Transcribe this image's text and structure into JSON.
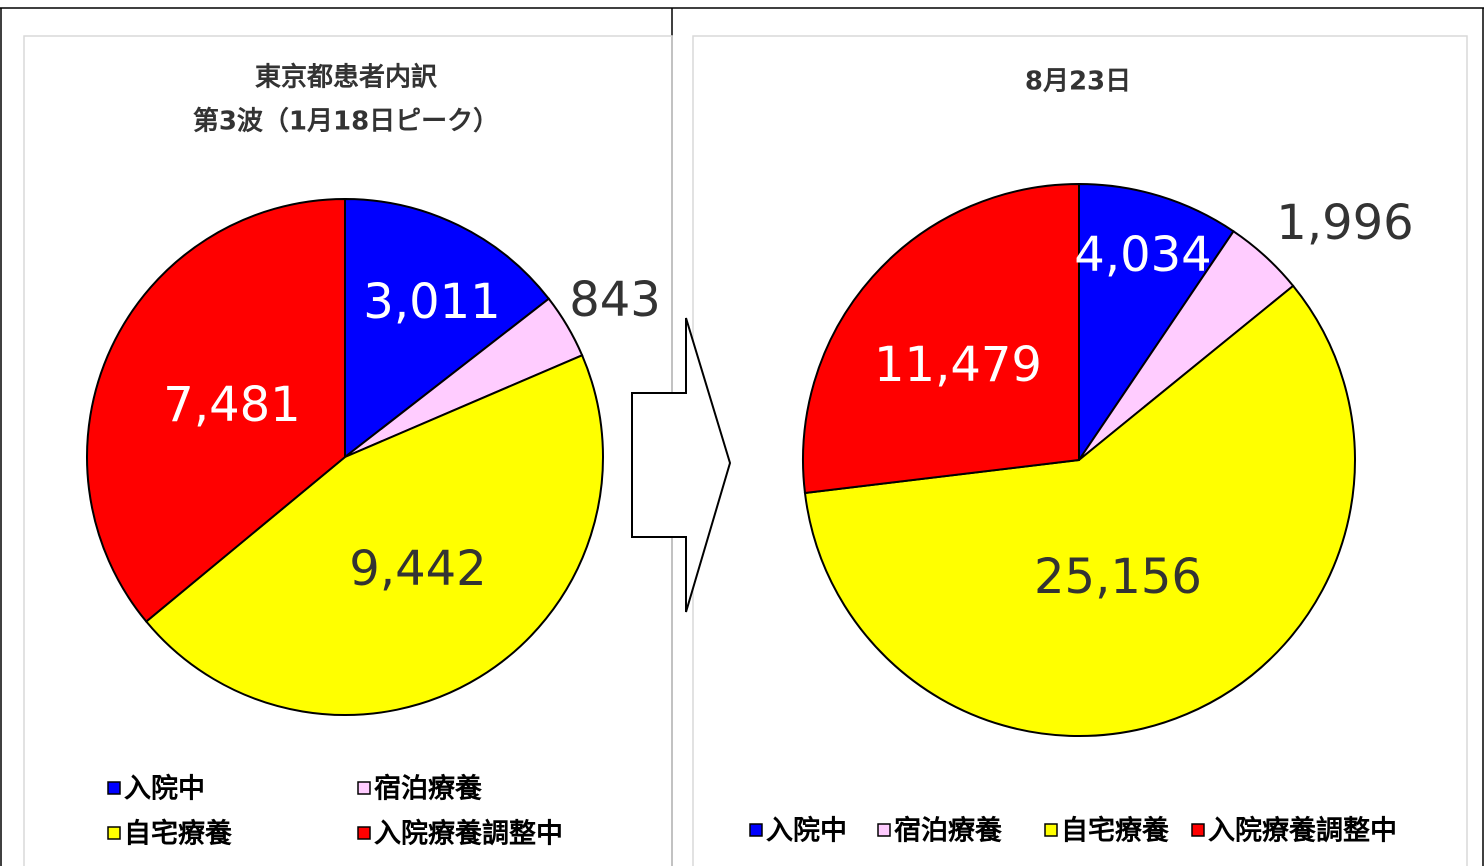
{
  "chart_data": [
    {
      "type": "pie",
      "title": "東京都患者内訳",
      "subtitle": "第3波（1月18日ピーク）",
      "categories": [
        "入院中",
        "宿泊療養",
        "自宅療養",
        "入院療養調整中"
      ],
      "values": [
        3011,
        843,
        9442,
        7481
      ],
      "value_labels": [
        "3,011",
        "843",
        "9,442",
        "7,481"
      ],
      "colors": [
        "#0000ff",
        "#ffccff",
        "#ffff00",
        "#ff0000"
      ]
    },
    {
      "type": "pie",
      "title": "8月23日",
      "categories": [
        "入院中",
        "宿泊療養",
        "自宅療養",
        "入院療養調整中"
      ],
      "values": [
        4034,
        1996,
        25156,
        11479
      ],
      "value_labels": [
        "4,034",
        "1,996",
        "25,156",
        "11,479"
      ],
      "colors": [
        "#0000ff",
        "#ffccff",
        "#ffff00",
        "#ff0000"
      ]
    }
  ]
}
